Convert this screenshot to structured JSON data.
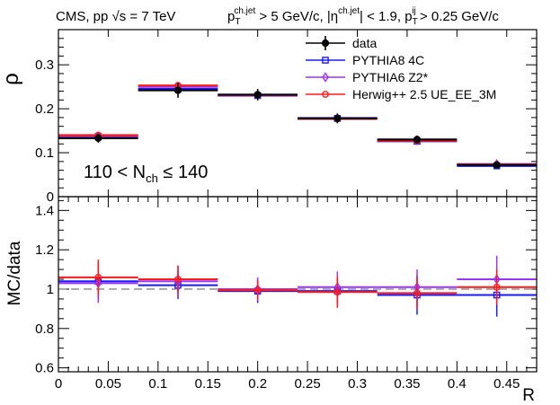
{
  "header": {
    "left": "CMS, pp √s = 7 TeV",
    "cut1": "p",
    "cut1_sub": "T",
    "cut1_sup": "ch.jet",
    "cut1_rest": " > 5 GeV/c, |η",
    "cut2_sup": "ch.jet",
    "cut2_rest": "| < 1.9, p",
    "cut3_sub": "T",
    "cut3_sup": "ij",
    "cut3_rest": " > 0.25 GeV/c"
  },
  "annotation": {
    "main": "110 < N",
    "sub": "ch",
    "rest": " ≤ 140"
  },
  "colors": {
    "data": "#000000",
    "pythia8": "#1a1aff",
    "pythia6": "#9933ff",
    "herwig": "#ff1a1a",
    "ref_line": "#999999"
  },
  "chart_data": [
    {
      "type": "line",
      "panel": "top",
      "ylabel": "ρ",
      "xlim": [
        0,
        0.48
      ],
      "ylim": [
        0,
        0.38
      ],
      "yticks": [
        0.1,
        0.2,
        0.3
      ],
      "ytick_labels": [
        "0.1",
        "0.2",
        "0.3"
      ],
      "bins": [
        [
          0,
          0.08
        ],
        [
          0.08,
          0.16
        ],
        [
          0.16,
          0.24
        ],
        [
          0.24,
          0.32
        ],
        [
          0.32,
          0.4
        ],
        [
          0.4,
          0.48
        ]
      ],
      "bin_centers": [
        0.04,
        0.12,
        0.2,
        0.28,
        0.36,
        0.44
      ],
      "legend_position": "top-right",
      "series": [
        {
          "name": "data",
          "color_key": "data",
          "marker": "filled-circle",
          "values": [
            0.133,
            0.242,
            0.232,
            0.178,
            0.13,
            0.072
          ],
          "errors": [
            0.01,
            0.017,
            0.013,
            0.011,
            0.009,
            0.006
          ]
        },
        {
          "name": "PYTHIA8 4C",
          "color_key": "pythia8",
          "marker": "open-square",
          "values": [
            0.137,
            0.245,
            0.23,
            0.178,
            0.126,
            0.07
          ]
        },
        {
          "name": "PYTHIA6 Z2*",
          "color_key": "pythia6",
          "marker": "open-diamond",
          "values": [
            0.136,
            0.25,
            0.232,
            0.179,
            0.128,
            0.074
          ]
        },
        {
          "name": "Herwig++ 2.5  UE_EE_3M",
          "color_key": "herwig",
          "marker": "open-circle",
          "values": [
            0.14,
            0.253,
            0.231,
            0.177,
            0.127,
            0.073
          ]
        }
      ]
    },
    {
      "type": "line",
      "panel": "bottom",
      "xlabel": "R",
      "ylabel": "MC/data",
      "xlim": [
        0,
        0.48
      ],
      "ylim": [
        0.58,
        1.47
      ],
      "xticks": [
        0,
        0.05,
        0.1,
        0.15,
        0.2,
        0.25,
        0.3,
        0.35,
        0.4,
        0.45
      ],
      "xtick_labels": [
        "0",
        "0.05",
        "0.1",
        "0.15",
        "0.2",
        "0.25",
        "0.3",
        "0.35",
        "0.4",
        "0.45"
      ],
      "yticks": [
        0.6,
        0.8,
        1.0,
        1.2,
        1.4
      ],
      "ytick_labels": [
        "0.6",
        "0.8",
        "1",
        "1.2",
        "1.4"
      ],
      "reference_line": 1.0,
      "series": [
        {
          "name": "PYTHIA8 4C",
          "color_key": "pythia8",
          "marker": "open-square",
          "values": [
            1.04,
            1.02,
            0.99,
            0.99,
            0.97,
            0.97
          ],
          "errors": [
            0.09,
            0.07,
            0.06,
            0.07,
            0.1,
            0.11
          ]
        },
        {
          "name": "PYTHIA6 Z2*",
          "color_key": "pythia6",
          "marker": "open-diamond",
          "values": [
            1.03,
            1.04,
            1.0,
            1.01,
            1.01,
            1.05
          ],
          "errors": [
            0.1,
            0.08,
            0.06,
            0.08,
            0.09,
            0.12
          ]
        },
        {
          "name": "Herwig++ 2.5  UE_EE_3M",
          "color_key": "herwig",
          "marker": "open-circle",
          "values": [
            1.06,
            1.05,
            0.995,
            0.985,
            0.98,
            1.01
          ],
          "errors": [
            0.09,
            0.07,
            0.05,
            0.08,
            0.08,
            0.09
          ]
        }
      ]
    }
  ]
}
